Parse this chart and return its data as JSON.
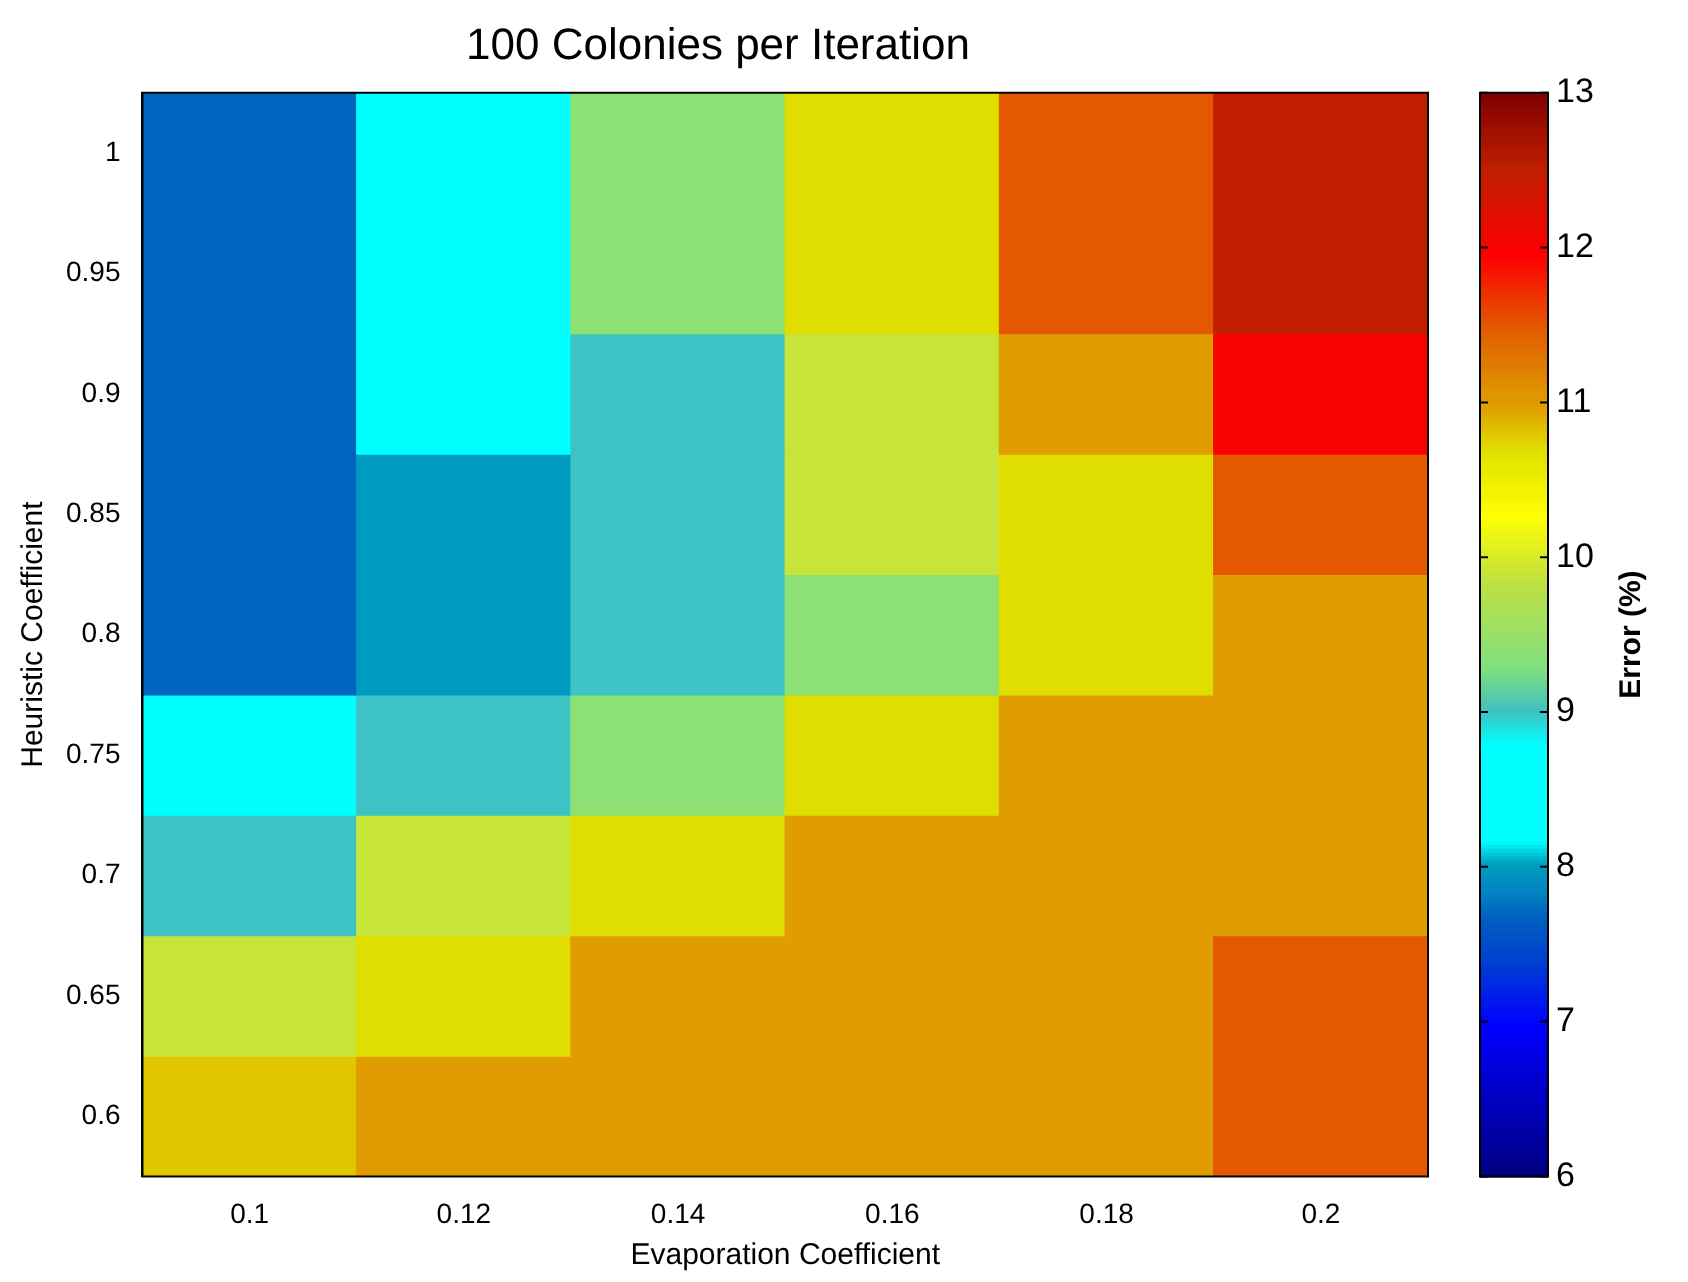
{
  "chart_data": {
    "type": "heatmap",
    "title": "100 Colonies per Iteration",
    "xlabel": "Evaporation Coefficient",
    "ylabel": "Heuristic Coefficient",
    "clabel": "Error (%)",
    "categories": [
      "0.1",
      "0.12",
      "0.14",
      "0.16",
      "0.18",
      "0.2"
    ],
    "y_categories": [
      "1",
      "0.95",
      "0.9",
      "0.85",
      "0.8",
      "0.75",
      "0.7",
      "0.65",
      "0.6"
    ],
    "cells": [
      [
        7.7,
        8.5,
        9.4,
        10.7,
        11.5,
        12.5
      ],
      [
        7.7,
        8.5,
        9.4,
        10.7,
        11.5,
        12.5
      ],
      [
        7.7,
        8.5,
        9.0,
        9.9,
        11.0,
        12.0
      ],
      [
        7.7,
        8.0,
        9.0,
        9.9,
        10.7,
        11.5
      ],
      [
        7.7,
        8.0,
        9.0,
        9.4,
        10.7,
        11.0
      ],
      [
        8.5,
        9.0,
        9.4,
        10.7,
        11.0,
        11.0
      ],
      [
        9.0,
        9.9,
        10.7,
        11.0,
        11.0,
        11.0
      ],
      [
        9.9,
        10.7,
        11.0,
        11.0,
        11.0,
        11.5
      ],
      [
        10.8,
        11.0,
        11.0,
        11.0,
        11.0,
        11.5
      ]
    ],
    "clim": [
      6,
      13
    ],
    "cticks": [
      6,
      7,
      8,
      9,
      10,
      11,
      12,
      13
    ]
  }
}
